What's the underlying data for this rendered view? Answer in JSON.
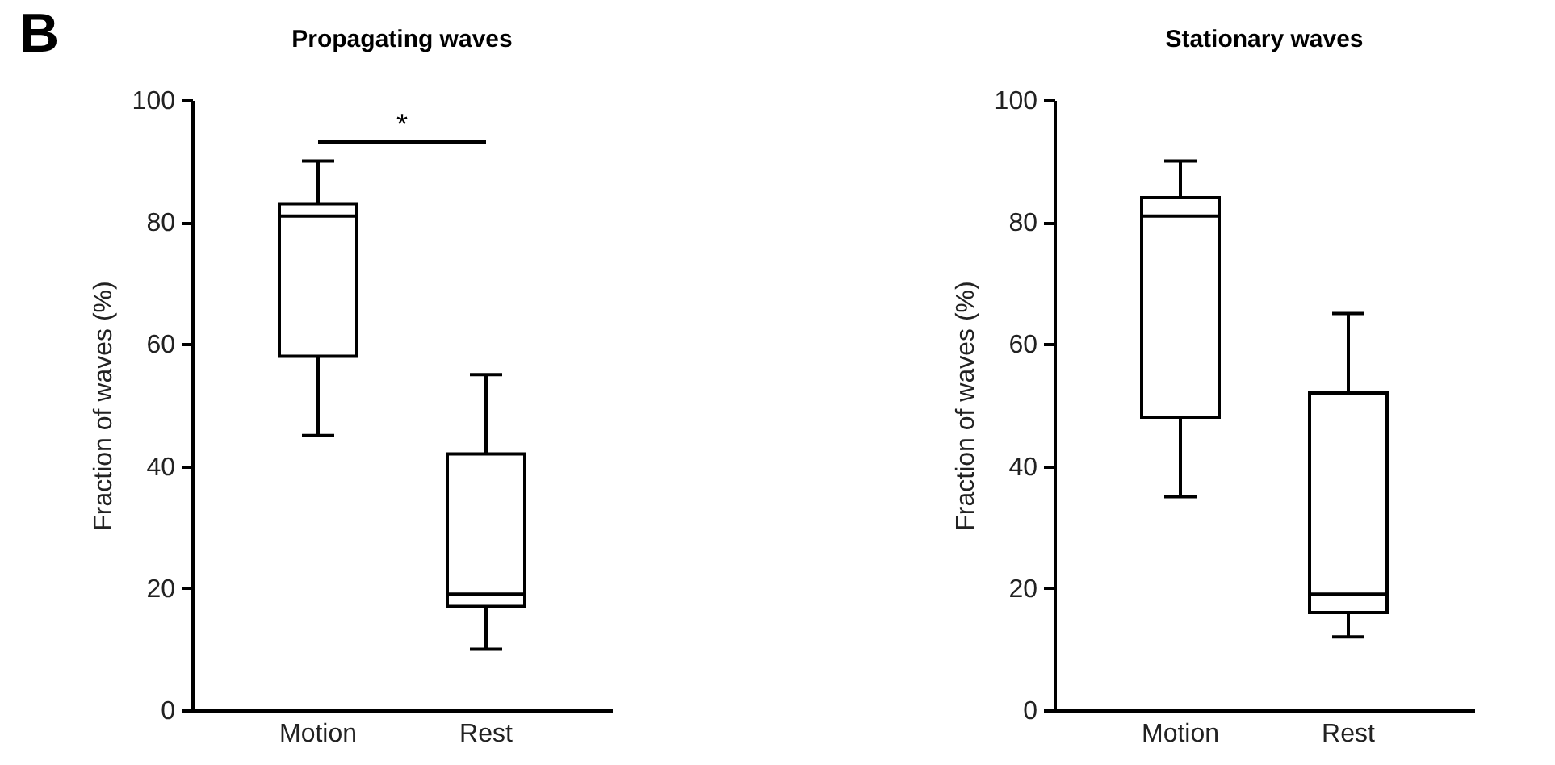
{
  "chart_data": [
    {
      "type": "box",
      "title": "Propagating waves",
      "ylabel": "Fraction of waves (%)",
      "categories": [
        "Motion",
        "Rest"
      ],
      "boxes": [
        {
          "low": 45,
          "q1": 58,
          "median": 81,
          "q3": 83,
          "high": 90
        },
        {
          "low": 10,
          "q1": 17,
          "median": 19,
          "q3": 42,
          "high": 55
        }
      ],
      "ylim": [
        0,
        100
      ],
      "yticks": [
        0,
        20,
        40,
        60,
        80,
        100
      ],
      "grid": false,
      "annotations": [
        "B",
        "*"
      ]
    },
    {
      "type": "box",
      "title": "Stationary waves",
      "ylabel": "Fraction of waves (%)",
      "categories": [
        "Motion",
        "Rest"
      ],
      "boxes": [
        {
          "low": 35,
          "q1": 48,
          "median": 81,
          "q3": 84,
          "high": 90
        },
        {
          "low": 12,
          "q1": 16,
          "median": 19,
          "q3": 52,
          "high": 65
        }
      ],
      "ylim": [
        0,
        100
      ],
      "yticks": [
        0,
        20,
        40,
        60,
        80,
        100
      ],
      "grid": false
    }
  ]
}
